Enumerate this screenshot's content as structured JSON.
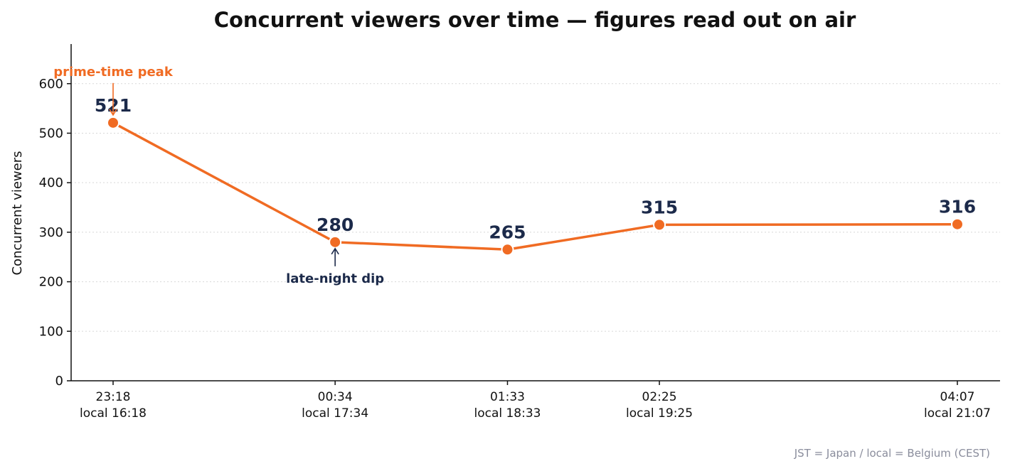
{
  "chart_data": {
    "type": "line",
    "title": "Concurrent viewers over time — figures read out on air",
    "ylabel": "Concurrent viewers",
    "xlabel": "",
    "ylim": [
      0,
      680
    ],
    "yticks": [
      0,
      100,
      200,
      300,
      400,
      500,
      600
    ],
    "grid": "horizontal dotted",
    "x": [
      {
        "jst": "23:18",
        "local": "local 16:18"
      },
      {
        "jst": "00:34",
        "local": "local 17:34"
      },
      {
        "jst": "01:33",
        "local": "local 18:33"
      },
      {
        "jst": "02:25",
        "local": "local 19:25"
      },
      {
        "jst": "04:07",
        "local": "local 21:07"
      }
    ],
    "series": [
      {
        "values": [
          521,
          280,
          265,
          315,
          316
        ],
        "color": "#f06b23"
      }
    ],
    "annotations": [
      {
        "text": "prime-time peak",
        "point_index": 0,
        "color": "#f06b23"
      },
      {
        "text": "late-night dip",
        "point_index": 1,
        "color": "#1c2a4a"
      }
    ],
    "footnote": "JST = Japan / local = Belgium (CEST)"
  }
}
